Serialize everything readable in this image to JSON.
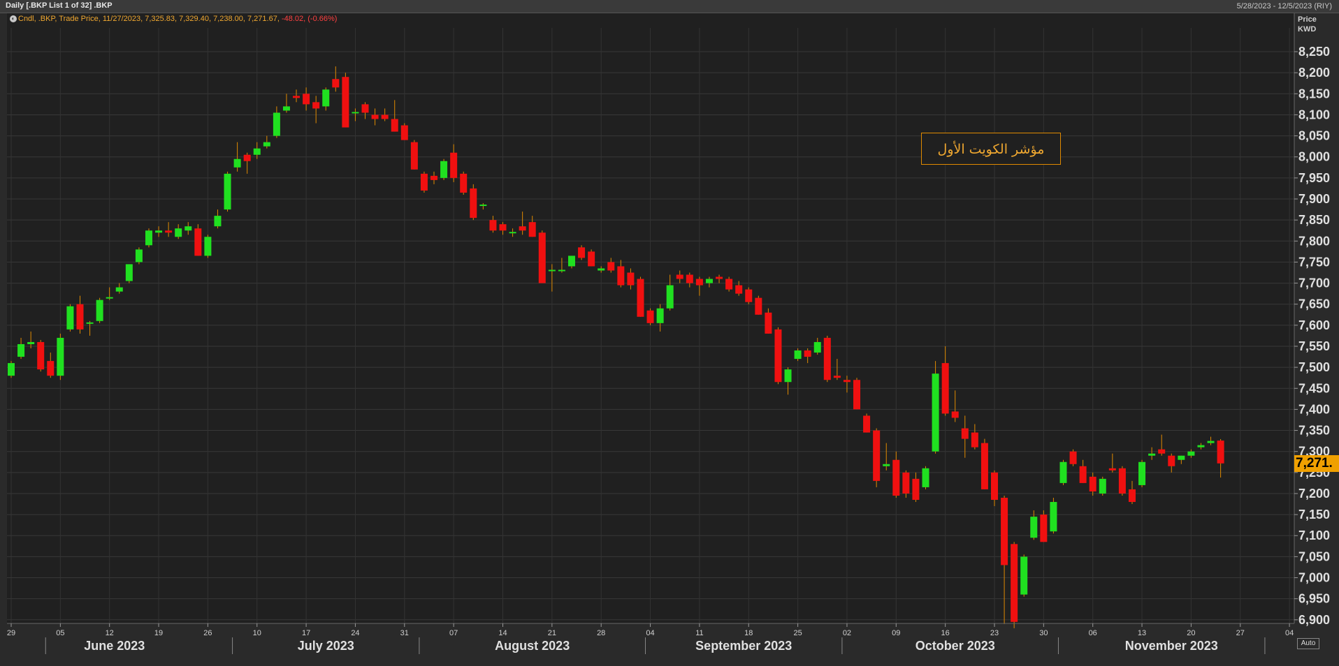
{
  "window": {
    "title": "Daily [.BKP List 1 of 32] .BKP",
    "date_range": "5/28/2023 - 12/5/2023 (RIY)"
  },
  "legend": {
    "text": "Cndl, .BKP, Trade Price, 11/27/2023, 7,325.83, 7,329.40, 7,238.00, 7,271.67,",
    "change": "-48.02, (-0.66%)"
  },
  "axis_unit": {
    "line1": "Price",
    "line2": "KWD"
  },
  "annotation": "مؤشر الكويت الأول",
  "last_price_label": "7,271.",
  "auto_button": "Auto",
  "colors": {
    "up": "#20e020",
    "down": "#f01010",
    "wick": "#e08a00",
    "accent": "#f0a000"
  },
  "chart_data": {
    "type": "candlestick",
    "y_ticks": [
      "6,900",
      "6,950",
      "7,000",
      "7,050",
      "7,100",
      "7,150",
      "7,200",
      "7,250",
      "7,300",
      "7,350",
      "7,400",
      "7,450",
      "7,500",
      "7,550",
      "7,600",
      "7,650",
      "7,700",
      "7,750",
      "7,800",
      "7,850",
      "7,900",
      "7,950",
      "8,000",
      "8,050",
      "8,100",
      "8,150",
      "8,200",
      "8,250"
    ],
    "y_tick_values": [
      6900,
      6950,
      7000,
      7050,
      7100,
      7150,
      7200,
      7250,
      7300,
      7350,
      7400,
      7450,
      7500,
      7550,
      7600,
      7650,
      7700,
      7750,
      7800,
      7850,
      7900,
      7950,
      8000,
      8050,
      8100,
      8150,
      8200,
      8250
    ],
    "ylim": [
      6880,
      8280
    ],
    "x_ticks": [
      {
        "label": "29",
        "i": 0
      },
      {
        "label": "05",
        "i": 5
      },
      {
        "label": "12",
        "i": 10
      },
      {
        "label": "19",
        "i": 15
      },
      {
        "label": "26",
        "i": 20
      },
      {
        "label": "10",
        "i": 25
      },
      {
        "label": "17",
        "i": 30
      },
      {
        "label": "24",
        "i": 35
      },
      {
        "label": "31",
        "i": 40
      },
      {
        "label": "07",
        "i": 45
      },
      {
        "label": "14",
        "i": 50
      },
      {
        "label": "21",
        "i": 55
      },
      {
        "label": "28",
        "i": 60
      },
      {
        "label": "04",
        "i": 65
      },
      {
        "label": "11",
        "i": 70
      },
      {
        "label": "18",
        "i": 75
      },
      {
        "label": "25",
        "i": 80
      },
      {
        "label": "02",
        "i": 85
      },
      {
        "label": "09",
        "i": 90
      },
      {
        "label": "16",
        "i": 95
      },
      {
        "label": "23",
        "i": 100
      },
      {
        "label": "30",
        "i": 105
      },
      {
        "label": "06",
        "i": 110
      },
      {
        "label": "13",
        "i": 115
      },
      {
        "label": "20",
        "i": 120
      },
      {
        "label": "27",
        "i": 125
      },
      {
        "label": "04",
        "i": 130
      }
    ],
    "months": [
      {
        "label": "June 2023",
        "center": 10.5
      },
      {
        "label": "July 2023",
        "center": 32.0
      },
      {
        "label": "August 2023",
        "center": 53.0
      },
      {
        "label": "September 2023",
        "center": 74.5
      },
      {
        "label": "October 2023",
        "center": 96.0
      },
      {
        "label": "November 2023",
        "center": 118.0
      }
    ],
    "month_separators": [
      3.5,
      22.5,
      41.5,
      64.5,
      84.5,
      106.5,
      127.5
    ],
    "candles": [
      {
        "o": 7480,
        "h": 7515,
        "l": 7475,
        "c": 7510
      },
      {
        "o": 7525,
        "h": 7570,
        "l": 7520,
        "c": 7555
      },
      {
        "o": 7555,
        "h": 7585,
        "l": 7545,
        "c": 7560
      },
      {
        "o": 7560,
        "h": 7565,
        "l": 7490,
        "c": 7495
      },
      {
        "o": 7515,
        "h": 7535,
        "l": 7475,
        "c": 7480
      },
      {
        "o": 7480,
        "h": 7580,
        "l": 7470,
        "c": 7570
      },
      {
        "o": 7590,
        "h": 7650,
        "l": 7585,
        "c": 7645
      },
      {
        "o": 7650,
        "h": 7670,
        "l": 7580,
        "c": 7590
      },
      {
        "o": 7605,
        "h": 7610,
        "l": 7575,
        "c": 7605
      },
      {
        "o": 7610,
        "h": 7665,
        "l": 7605,
        "c": 7660
      },
      {
        "o": 7665,
        "h": 7690,
        "l": 7660,
        "c": 7665
      },
      {
        "o": 7680,
        "h": 7700,
        "l": 7675,
        "c": 7690
      },
      {
        "o": 7705,
        "h": 7745,
        "l": 7700,
        "c": 7745
      },
      {
        "o": 7750,
        "h": 7785,
        "l": 7745,
        "c": 7780
      },
      {
        "o": 7790,
        "h": 7830,
        "l": 7785,
        "c": 7825
      },
      {
        "o": 7820,
        "h": 7835,
        "l": 7810,
        "c": 7825
      },
      {
        "o": 7825,
        "h": 7845,
        "l": 7810,
        "c": 7820
      },
      {
        "o": 7810,
        "h": 7840,
        "l": 7805,
        "c": 7830
      },
      {
        "o": 7825,
        "h": 7845,
        "l": 7815,
        "c": 7835
      },
      {
        "o": 7830,
        "h": 7840,
        "l": 7765,
        "c": 7765
      },
      {
        "o": 7765,
        "h": 7815,
        "l": 7760,
        "c": 7810
      },
      {
        "o": 7835,
        "h": 7875,
        "l": 7830,
        "c": 7860
      },
      {
        "o": 7875,
        "h": 7965,
        "l": 7870,
        "c": 7960
      },
      {
        "o": 7975,
        "h": 8035,
        "l": 7965,
        "c": 7995
      },
      {
        "o": 8005,
        "h": 8010,
        "l": 7960,
        "c": 7990
      },
      {
        "o": 8005,
        "h": 8035,
        "l": 7995,
        "c": 8020
      },
      {
        "o": 8025,
        "h": 8050,
        "l": 8020,
        "c": 8035
      },
      {
        "o": 8050,
        "h": 8120,
        "l": 8045,
        "c": 8105
      },
      {
        "o": 8110,
        "h": 8150,
        "l": 8105,
        "c": 8120
      },
      {
        "o": 8145,
        "h": 8160,
        "l": 8130,
        "c": 8140
      },
      {
        "o": 8150,
        "h": 8165,
        "l": 8110,
        "c": 8125
      },
      {
        "o": 8130,
        "h": 8145,
        "l": 8080,
        "c": 8115
      },
      {
        "o": 8120,
        "h": 8165,
        "l": 8110,
        "c": 8160
      },
      {
        "o": 8185,
        "h": 8215,
        "l": 8155,
        "c": 8165
      },
      {
        "o": 8190,
        "h": 8200,
        "l": 8070,
        "c": 8070
      },
      {
        "o": 8105,
        "h": 8115,
        "l": 8085,
        "c": 8105
      },
      {
        "o": 8125,
        "h": 8130,
        "l": 8090,
        "c": 8105
      },
      {
        "o": 8100,
        "h": 8115,
        "l": 8075,
        "c": 8090
      },
      {
        "o": 8100,
        "h": 8115,
        "l": 8085,
        "c": 8090
      },
      {
        "o": 8090,
        "h": 8135,
        "l": 8060,
        "c": 8060
      },
      {
        "o": 8075,
        "h": 8080,
        "l": 8040,
        "c": 8040
      },
      {
        "o": 8035,
        "h": 8040,
        "l": 7970,
        "c": 7970
      },
      {
        "o": 7960,
        "h": 7965,
        "l": 7915,
        "c": 7920
      },
      {
        "o": 7955,
        "h": 7965,
        "l": 7935,
        "c": 7945
      },
      {
        "o": 7950,
        "h": 7995,
        "l": 7945,
        "c": 7990
      },
      {
        "o": 8010,
        "h": 8030,
        "l": 7940,
        "c": 7950
      },
      {
        "o": 7960,
        "h": 7965,
        "l": 7910,
        "c": 7915
      },
      {
        "o": 7925,
        "h": 7935,
        "l": 7850,
        "c": 7855
      },
      {
        "o": 7885,
        "h": 7890,
        "l": 7875,
        "c": 7885
      },
      {
        "o": 7850,
        "h": 7860,
        "l": 7820,
        "c": 7825
      },
      {
        "o": 7840,
        "h": 7845,
        "l": 7815,
        "c": 7825
      },
      {
        "o": 7820,
        "h": 7830,
        "l": 7810,
        "c": 7820
      },
      {
        "o": 7835,
        "h": 7870,
        "l": 7815,
        "c": 7825
      },
      {
        "o": 7845,
        "h": 7860,
        "l": 7810,
        "c": 7810
      },
      {
        "o": 7820,
        "h": 7825,
        "l": 7700,
        "c": 7700
      },
      {
        "o": 7730,
        "h": 7745,
        "l": 7680,
        "c": 7730
      },
      {
        "o": 7730,
        "h": 7760,
        "l": 7725,
        "c": 7730
      },
      {
        "o": 7740,
        "h": 7765,
        "l": 7735,
        "c": 7765
      },
      {
        "o": 7785,
        "h": 7790,
        "l": 7755,
        "c": 7760
      },
      {
        "o": 7775,
        "h": 7780,
        "l": 7740,
        "c": 7740
      },
      {
        "o": 7730,
        "h": 7740,
        "l": 7725,
        "c": 7735
      },
      {
        "o": 7750,
        "h": 7760,
        "l": 7725,
        "c": 7730
      },
      {
        "o": 7740,
        "h": 7755,
        "l": 7690,
        "c": 7695
      },
      {
        "o": 7725,
        "h": 7735,
        "l": 7685,
        "c": 7695
      },
      {
        "o": 7710,
        "h": 7715,
        "l": 7620,
        "c": 7620
      },
      {
        "o": 7635,
        "h": 7640,
        "l": 7600,
        "c": 7605
      },
      {
        "o": 7605,
        "h": 7650,
        "l": 7585,
        "c": 7640
      },
      {
        "o": 7640,
        "h": 7720,
        "l": 7635,
        "c": 7695
      },
      {
        "o": 7720,
        "h": 7730,
        "l": 7700,
        "c": 7710
      },
      {
        "o": 7720,
        "h": 7725,
        "l": 7690,
        "c": 7700
      },
      {
        "o": 7710,
        "h": 7715,
        "l": 7670,
        "c": 7695
      },
      {
        "o": 7700,
        "h": 7715,
        "l": 7690,
        "c": 7710
      },
      {
        "o": 7715,
        "h": 7720,
        "l": 7700,
        "c": 7710
      },
      {
        "o": 7710,
        "h": 7715,
        "l": 7680,
        "c": 7685
      },
      {
        "o": 7695,
        "h": 7705,
        "l": 7670,
        "c": 7675
      },
      {
        "o": 7685,
        "h": 7690,
        "l": 7650,
        "c": 7655
      },
      {
        "o": 7665,
        "h": 7670,
        "l": 7625,
        "c": 7625
      },
      {
        "o": 7630,
        "h": 7640,
        "l": 7580,
        "c": 7580
      },
      {
        "o": 7590,
        "h": 7595,
        "l": 7460,
        "c": 7465
      },
      {
        "o": 7465,
        "h": 7500,
        "l": 7435,
        "c": 7495
      },
      {
        "o": 7520,
        "h": 7545,
        "l": 7515,
        "c": 7540
      },
      {
        "o": 7540,
        "h": 7545,
        "l": 7510,
        "c": 7525
      },
      {
        "o": 7535,
        "h": 7570,
        "l": 7530,
        "c": 7560
      },
      {
        "o": 7570,
        "h": 7575,
        "l": 7465,
        "c": 7470
      },
      {
        "o": 7480,
        "h": 7520,
        "l": 7470,
        "c": 7475
      },
      {
        "o": 7470,
        "h": 7480,
        "l": 7440,
        "c": 7465
      },
      {
        "o": 7470,
        "h": 7475,
        "l": 7400,
        "c": 7400
      },
      {
        "o": 7385,
        "h": 7390,
        "l": 7345,
        "c": 7345
      },
      {
        "o": 7350,
        "h": 7355,
        "l": 7215,
        "c": 7230
      },
      {
        "o": 7265,
        "h": 7320,
        "l": 7255,
        "c": 7270
      },
      {
        "o": 7280,
        "h": 7300,
        "l": 7190,
        "c": 7195
      },
      {
        "o": 7250,
        "h": 7255,
        "l": 7190,
        "c": 7200
      },
      {
        "o": 7235,
        "h": 7250,
        "l": 7180,
        "c": 7185
      },
      {
        "o": 7215,
        "h": 7265,
        "l": 7210,
        "c": 7260
      },
      {
        "o": 7300,
        "h": 7515,
        "l": 7295,
        "c": 7485
      },
      {
        "o": 7510,
        "h": 7550,
        "l": 7385,
        "c": 7390
      },
      {
        "o": 7395,
        "h": 7445,
        "l": 7370,
        "c": 7380
      },
      {
        "o": 7355,
        "h": 7385,
        "l": 7285,
        "c": 7330
      },
      {
        "o": 7345,
        "h": 7365,
        "l": 7305,
        "c": 7310
      },
      {
        "o": 7320,
        "h": 7330,
        "l": 7210,
        "c": 7210
      },
      {
        "o": 7250,
        "h": 7255,
        "l": 7170,
        "c": 7185
      },
      {
        "o": 7190,
        "h": 7195,
        "l": 6890,
        "c": 7030
      },
      {
        "o": 7080,
        "h": 7085,
        "l": 6880,
        "c": 6895
      },
      {
        "o": 6960,
        "h": 7055,
        "l": 6955,
        "c": 7050
      },
      {
        "o": 7095,
        "h": 7160,
        "l": 7090,
        "c": 7145
      },
      {
        "o": 7150,
        "h": 7160,
        "l": 7085,
        "c": 7085
      },
      {
        "o": 7110,
        "h": 7190,
        "l": 7105,
        "c": 7180
      },
      {
        "o": 7225,
        "h": 7280,
        "l": 7220,
        "c": 7275
      },
      {
        "o": 7300,
        "h": 7305,
        "l": 7265,
        "c": 7270
      },
      {
        "o": 7265,
        "h": 7280,
        "l": 7225,
        "c": 7225
      },
      {
        "o": 7240,
        "h": 7250,
        "l": 7195,
        "c": 7205
      },
      {
        "o": 7200,
        "h": 7240,
        "l": 7195,
        "c": 7235
      },
      {
        "o": 7260,
        "h": 7295,
        "l": 7250,
        "c": 7255
      },
      {
        "o": 7260,
        "h": 7265,
        "l": 7195,
        "c": 7200
      },
      {
        "o": 7210,
        "h": 7230,
        "l": 7175,
        "c": 7180
      },
      {
        "o": 7220,
        "h": 7280,
        "l": 7215,
        "c": 7275
      },
      {
        "o": 7290,
        "h": 7310,
        "l": 7280,
        "c": 7295
      },
      {
        "o": 7305,
        "h": 7340,
        "l": 7290,
        "c": 7295
      },
      {
        "o": 7290,
        "h": 7295,
        "l": 7250,
        "c": 7265
      },
      {
        "o": 7280,
        "h": 7290,
        "l": 7270,
        "c": 7290
      },
      {
        "o": 7290,
        "h": 7305,
        "l": 7285,
        "c": 7300
      },
      {
        "o": 7310,
        "h": 7320,
        "l": 7305,
        "c": 7315
      },
      {
        "o": 7320,
        "h": 7335,
        "l": 7315,
        "c": 7325
      },
      {
        "o": 7325.83,
        "h": 7329.4,
        "l": 7238.0,
        "c": 7271.67
      }
    ],
    "last_value": 7271.67
  }
}
